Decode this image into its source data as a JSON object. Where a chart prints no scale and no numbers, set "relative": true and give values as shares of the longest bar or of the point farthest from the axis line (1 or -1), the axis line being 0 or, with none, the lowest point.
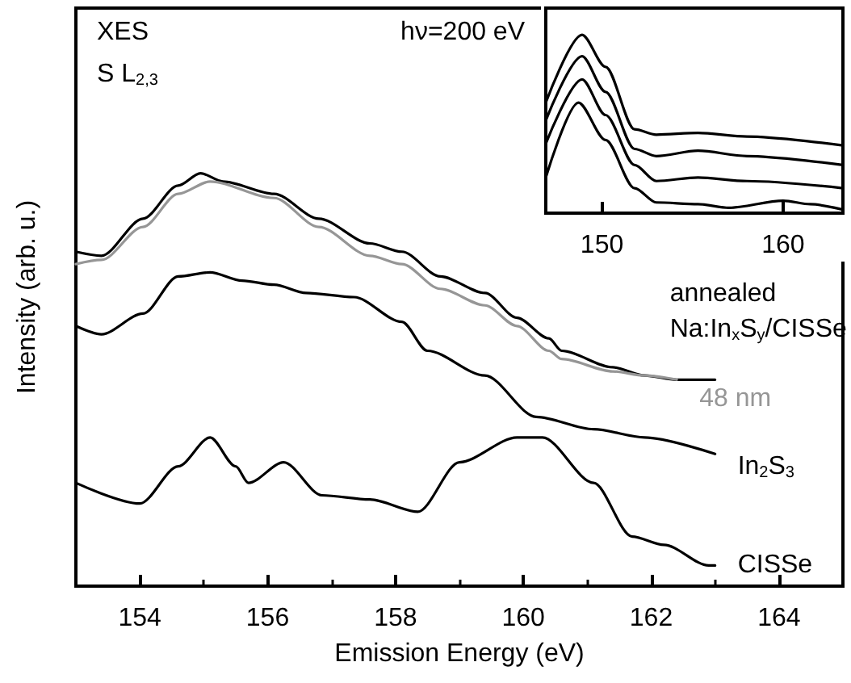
{
  "chart_data": [
    {
      "type": "line",
      "relative": true,
      "xlabel": "Emission Energy (eV)",
      "ylabel": "Intensity (arb. u.)",
      "xlim": [
        153,
        165
      ],
      "xticks": [
        154,
        156,
        158,
        160,
        162,
        164
      ],
      "legend": false,
      "grid": false,
      "marker": "none",
      "line_style": "solid",
      "annotations": [
        "XES",
        "S L$_{2,3}$",
        "hν=200 eV"
      ],
      "series": [
        {
          "name": "annealed Na:In$_{x}$S$_{y}$/CISSe",
          "color": "#000000",
          "x": [
            153,
            153.4,
            154.05,
            154.6,
            154.95,
            155.3,
            156.1,
            156.8,
            157.6,
            158.1,
            158.7,
            159.4,
            159.9,
            160.4,
            160.6,
            161.4,
            161.9,
            162.4,
            163
          ],
          "values": [
            0.81,
            0.8,
            0.89,
            0.97,
            1.0,
            0.98,
            0.95,
            0.89,
            0.83,
            0.81,
            0.75,
            0.71,
            0.65,
            0.6,
            0.57,
            0.53,
            0.51,
            0.5,
            0.5
          ]
        },
        {
          "name": "48 nm",
          "color": "#969696",
          "x": [
            153,
            153.4,
            154.05,
            154.6,
            155.1,
            156.1,
            156.8,
            157.6,
            158.1,
            158.7,
            159.4,
            159.9,
            160.4,
            160.6,
            161.4,
            161.9,
            162.4
          ],
          "values": [
            0.78,
            0.79,
            0.87,
            0.95,
            0.98,
            0.94,
            0.87,
            0.8,
            0.78,
            0.72,
            0.68,
            0.63,
            0.57,
            0.55,
            0.52,
            0.51,
            0.5
          ]
        },
        {
          "name": "In$_{2}$S$_{3}$",
          "color": "#000000",
          "x": [
            153,
            153.4,
            154.05,
            154.6,
            155.1,
            155.6,
            156.1,
            156.6,
            157.35,
            158.1,
            158.5,
            159.4,
            160.2,
            161.1,
            161.9,
            163
          ],
          "values": [
            0.63,
            0.61,
            0.66,
            0.75,
            0.76,
            0.74,
            0.73,
            0.71,
            0.7,
            0.64,
            0.57,
            0.51,
            0.41,
            0.38,
            0.36,
            0.32
          ]
        },
        {
          "name": "CISSe",
          "color": "#000000",
          "x": [
            153,
            154,
            154.6,
            155.1,
            155.5,
            155.7,
            156.25,
            156.85,
            157.6,
            158.35,
            159,
            159.9,
            160.3,
            161.1,
            161.7,
            162.2,
            162.9,
            163
          ],
          "values": [
            0.25,
            0.2,
            0.29,
            0.36,
            0.29,
            0.25,
            0.3,
            0.22,
            0.21,
            0.18,
            0.3,
            0.36,
            0.36,
            0.25,
            0.12,
            0.1,
            0.05,
            0.05
          ]
        }
      ]
    },
    {
      "type": "line",
      "relative": true,
      "xlim": [
        146.9,
        163.3
      ],
      "xticks": [
        150,
        160
      ],
      "legend": false,
      "grid": false,
      "marker": "none",
      "line_style": "solid",
      "series": [
        {
          "color": "#000000",
          "x": [
            146.9,
            148.9,
            150.2,
            151.8,
            153,
            155.3,
            158,
            163.3
          ],
          "values": [
            0.62,
            1.0,
            0.82,
            0.47,
            0.44,
            0.45,
            0.43,
            0.38
          ]
        },
        {
          "color": "#000000",
          "x": [
            146.9,
            148.9,
            150.2,
            151.8,
            153,
            155.3,
            158,
            163.3
          ],
          "values": [
            0.52,
            0.88,
            0.68,
            0.36,
            0.32,
            0.35,
            0.32,
            0.27
          ]
        },
        {
          "color": "#000000",
          "x": [
            146.9,
            148.9,
            150.2,
            151.8,
            153,
            155.3,
            158,
            163.3
          ],
          "values": [
            0.39,
            0.75,
            0.55,
            0.27,
            0.18,
            0.2,
            0.18,
            0.14
          ]
        },
        {
          "color": "#000000",
          "x": [
            146.9,
            148.7,
            150.2,
            151.8,
            153,
            155.3,
            157,
            160,
            161.5,
            163.3
          ],
          "values": [
            0.2,
            0.62,
            0.41,
            0.14,
            0.06,
            0.05,
            0.03,
            0.07,
            0.05,
            0.02
          ]
        }
      ]
    }
  ]
}
